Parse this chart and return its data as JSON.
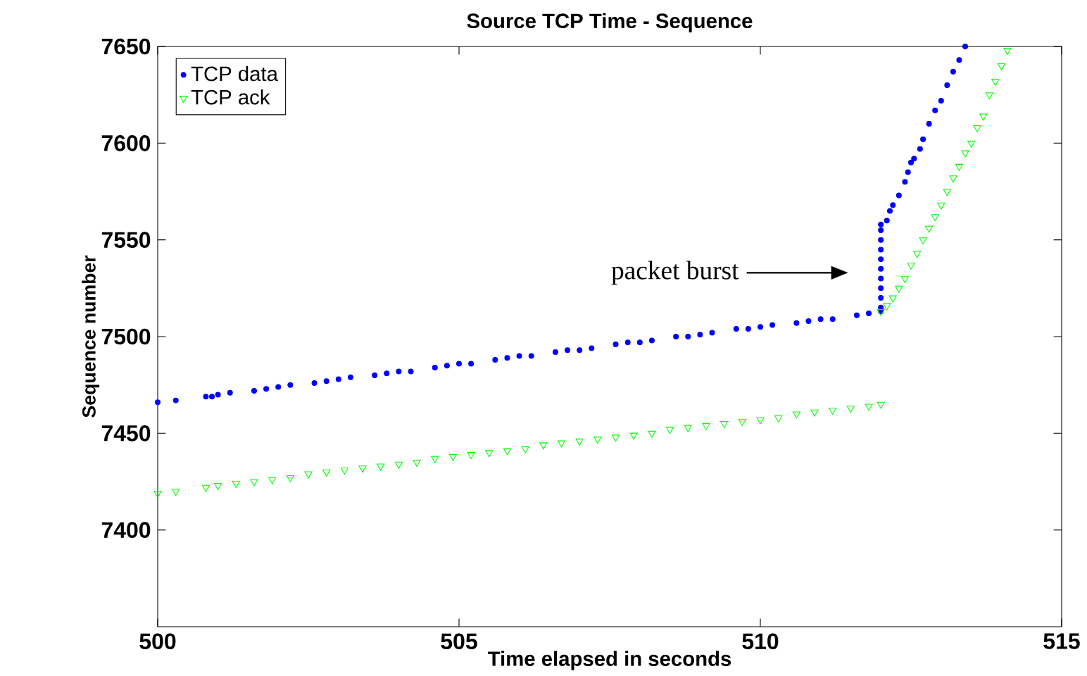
{
  "chart_data": {
    "type": "scatter",
    "title": "Source TCP Time - Sequence",
    "xlabel": "Time elapsed in seconds",
    "ylabel": "Sequence number",
    "xlim": [
      500,
      515
    ],
    "ylim": [
      7350,
      7650
    ],
    "xticks": [
      500,
      505,
      510,
      515
    ],
    "yticks": [
      7400,
      7450,
      7500,
      7550,
      7600,
      7650
    ],
    "grid": false,
    "legend": "top left",
    "annotations": [
      "packet burst"
    ],
    "series": [
      {
        "name": "TCP data",
        "color": "#0000ff",
        "marker": "circle",
        "x": [
          500.0,
          500.3,
          500.8,
          500.9,
          501.0,
          501.2,
          501.6,
          501.8,
          502.0,
          502.2,
          502.6,
          502.8,
          503.0,
          503.2,
          503.6,
          503.8,
          504.0,
          504.2,
          504.6,
          504.8,
          505.0,
          505.2,
          505.6,
          505.8,
          506.0,
          506.2,
          506.6,
          506.8,
          507.0,
          507.2,
          507.6,
          507.8,
          508.0,
          508.2,
          508.6,
          508.8,
          509.0,
          509.2,
          509.6,
          509.8,
          510.0,
          510.2,
          510.6,
          510.8,
          511.0,
          511.2,
          511.6,
          511.8,
          512.0,
          512.0,
          512.0,
          512.0,
          512.0,
          512.0,
          512.0,
          512.0,
          512.0,
          512.0,
          512.0,
          512.1,
          512.15,
          512.2,
          512.3,
          512.4,
          512.45,
          512.5,
          512.55,
          512.65,
          512.7,
          512.8,
          512.9,
          513.0,
          513.1,
          513.2,
          513.3,
          513.4
        ],
        "values": [
          7466,
          7467,
          7469,
          7469,
          7470,
          7471,
          7472,
          7473,
          7474,
          7475,
          7476,
          7477,
          7478,
          7479,
          7480,
          7481,
          7482,
          7482,
          7484,
          7485,
          7486,
          7486,
          7488,
          7489,
          7490,
          7490,
          7492,
          7493,
          7493,
          7494,
          7496,
          7497,
          7497,
          7498,
          7500,
          7500,
          7501,
          7502,
          7504,
          7504,
          7505,
          7506,
          7507,
          7508,
          7509,
          7509,
          7511,
          7512,
          7513,
          7515,
          7520,
          7525,
          7530,
          7535,
          7540,
          7545,
          7550,
          7555,
          7558,
          7560,
          7565,
          7568,
          7573,
          7580,
          7585,
          7590,
          7592,
          7597,
          7602,
          7610,
          7617,
          7622,
          7630,
          7637,
          7643,
          7650
        ]
      },
      {
        "name": "TCP ack",
        "color": "#00ff00",
        "marker": "triangle",
        "x": [
          500.0,
          500.3,
          500.8,
          501.0,
          501.3,
          501.6,
          501.9,
          502.2,
          502.5,
          502.8,
          503.1,
          503.4,
          503.7,
          504.0,
          504.3,
          504.6,
          504.9,
          505.2,
          505.5,
          505.8,
          506.1,
          506.4,
          506.7,
          507.0,
          507.3,
          507.6,
          507.9,
          508.2,
          508.5,
          508.8,
          509.1,
          509.4,
          509.7,
          510.0,
          510.3,
          510.6,
          510.9,
          511.2,
          511.5,
          511.8,
          512.0,
          512.0,
          512.1,
          512.2,
          512.3,
          512.4,
          512.5,
          512.6,
          512.7,
          512.8,
          512.9,
          513.0,
          513.1,
          513.2,
          513.3,
          513.4,
          513.5,
          513.6,
          513.7,
          513.8,
          513.9,
          514.0,
          514.1
        ],
        "values": [
          7419,
          7420,
          7422,
          7423,
          7424,
          7425,
          7426,
          7427,
          7429,
          7430,
          7431,
          7432,
          7433,
          7434,
          7435,
          7437,
          7438,
          7439,
          7440,
          7441,
          7442,
          7444,
          7445,
          7446,
          7447,
          7448,
          7449,
          7450,
          7452,
          7453,
          7454,
          7455,
          7456,
          7457,
          7458,
          7460,
          7461,
          7462,
          7463,
          7464,
          7465,
          7513,
          7516,
          7520,
          7525,
          7530,
          7537,
          7543,
          7550,
          7556,
          7562,
          7568,
          7575,
          7582,
          7588,
          7595,
          7600,
          7608,
          7614,
          7625,
          7632,
          7640,
          7648
        ]
      }
    ]
  }
}
